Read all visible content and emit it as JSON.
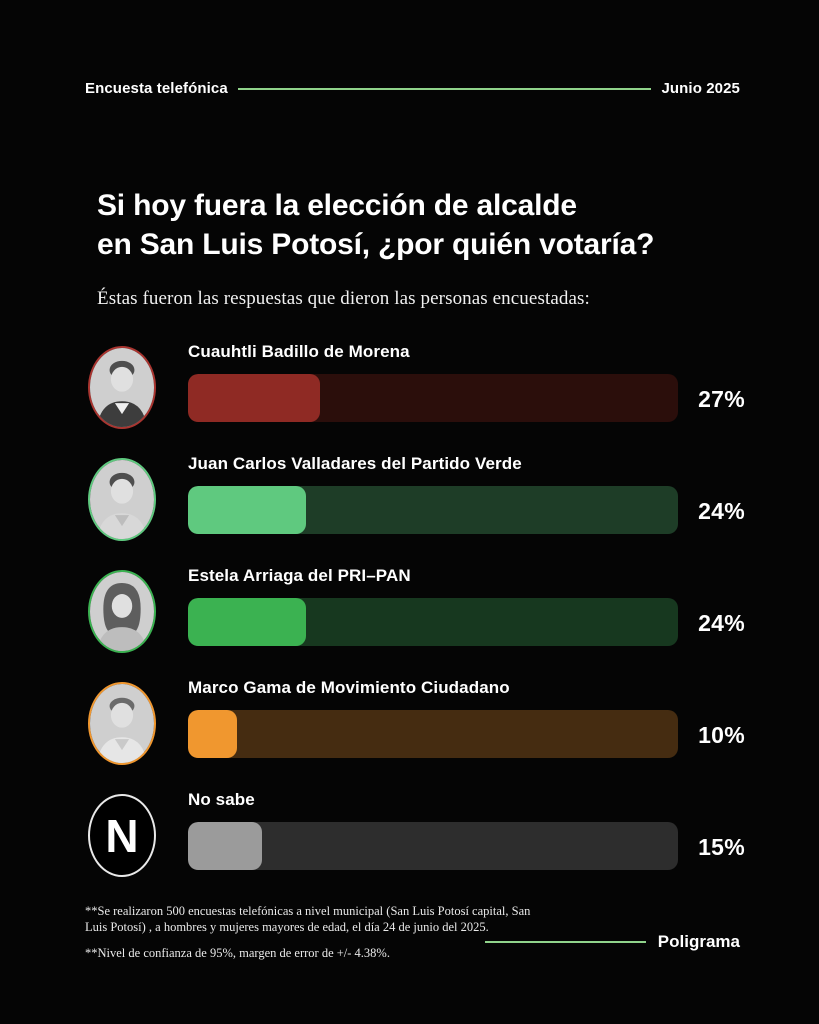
{
  "header": {
    "left": "Encuesta telefónica",
    "right": "Junio 2025"
  },
  "title": {
    "line1": "Si hoy fuera la elección de alcalde",
    "line2": "en San Luis Potosí, ¿por quién votaría?"
  },
  "subtitle": "Éstas fueron las respuestas que dieron las personas encuestadas:",
  "chart_data": {
    "type": "bar",
    "orientation": "horizontal",
    "title": "Si hoy fuera la elección de alcalde en San Luis Potosí, ¿por quién votaría?",
    "categories": [
      "Cuauhtli Badillo de Morena",
      "Juan Carlos Valladares del Partido Verde",
      "Estela Arriaga del PRI–PAN",
      "Marco Gama de Movimiento Ciudadano",
      "No sabe"
    ],
    "values": [
      27,
      24,
      24,
      10,
      15
    ],
    "value_labels": [
      "27%",
      "24%",
      "24%",
      "10%",
      "15%"
    ],
    "unit": "%",
    "xlim": [
      0,
      100
    ],
    "grid": false,
    "legend": false,
    "bar_colors": [
      "#8f2a24",
      "#5fc97f",
      "#3bb251",
      "#f0972f",
      "#9b9b9b"
    ],
    "track_colors": [
      "#2b0e0b",
      "#1e3d27",
      "#17381f",
      "#452c11",
      "#2d2d2d"
    ]
  },
  "results": [
    {
      "name": "Cuauhtli Badillo de Morena",
      "value": 27,
      "label": "27%",
      "fill_color": "#8f2a24",
      "track_color": "#2b0e0b",
      "ring_color": "#a93530",
      "avatar_type": "male"
    },
    {
      "name": "Juan Carlos Valladares del Partido Verde",
      "value": 24,
      "label": "24%",
      "fill_color": "#5fc97f",
      "track_color": "#1e3d27",
      "ring_color": "#5fc97f",
      "avatar_type": "male"
    },
    {
      "name": "Estela Arriaga del PRI–PAN",
      "value": 24,
      "label": "24%",
      "fill_color": "#3bb251",
      "track_color": "#17381f",
      "ring_color": "#3bb251",
      "avatar_type": "female"
    },
    {
      "name": "Marco Gama de Movimiento Ciudadano",
      "value": 10,
      "label": "10%",
      "fill_color": "#f0972f",
      "track_color": "#452c11",
      "ring_color": "#f0972f",
      "avatar_type": "male"
    },
    {
      "name": "No sabe",
      "value": 15,
      "label": "15%",
      "fill_color": "#9b9b9b",
      "track_color": "#2d2d2d",
      "ring_color": "#e9e9e9",
      "avatar_type": "letter",
      "avatar_letter": "N"
    }
  ],
  "footnotes": {
    "methodology_line1": "**Se realizaron 500 encuestas telefónicas a nivel municipal (San Luis Potosí capital, San",
    "methodology_line2": "Luis Potosí) , a hombres y mujeres mayores de edad, el día 24 de junio del 2025.",
    "confidence": "**Nivel de confianza de 95%, margen de error de +/- 4.38%."
  },
  "brand": "Poligrama",
  "colors": {
    "background": "#050505",
    "accent_line": "#90d38b",
    "text": "#ffffff"
  }
}
